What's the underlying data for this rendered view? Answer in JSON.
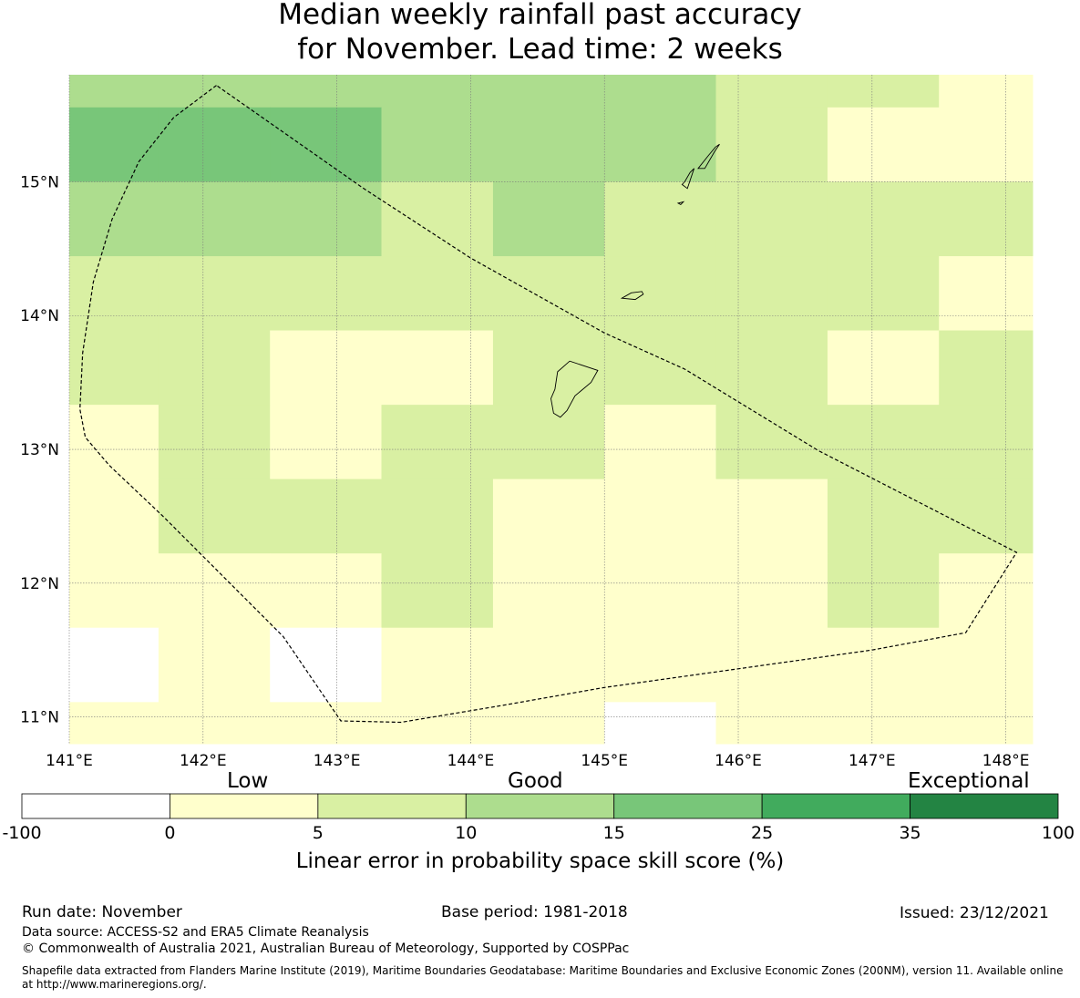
{
  "title": {
    "line1": "Median weekly rainfall past accuracy",
    "line2": "for November. Lead time: 2 weeks"
  },
  "map": {
    "lon_range": [
      141.0,
      148.2
    ],
    "lat_range": [
      10.8,
      15.8
    ],
    "lon_ticks": [
      141,
      142,
      143,
      144,
      145,
      146,
      147,
      148
    ],
    "lon_labels": [
      "141°E",
      "142°E",
      "143°E",
      "144°E",
      "145°E",
      "146°E",
      "147°E",
      "148°E"
    ],
    "lat_ticks": [
      11,
      12,
      13,
      14,
      15
    ],
    "lat_labels": [
      "11°N",
      "12°N",
      "13°N",
      "14°N",
      "15°N"
    ],
    "cell_lon_edges": [
      141.0,
      141.667,
      142.5,
      143.333,
      144.167,
      145.0,
      145.833,
      146.667,
      147.5,
      148.2
    ],
    "cell_lat_edges": [
      15.8,
      15.556,
      15.0,
      14.444,
      13.889,
      13.333,
      12.778,
      12.222,
      11.667,
      11.111,
      10.8
    ],
    "grid_class": [
      [
        3,
        3,
        3,
        3,
        3,
        3,
        2,
        2,
        1
      ],
      [
        4,
        4,
        4,
        3,
        3,
        3,
        2,
        1,
        1
      ],
      [
        3,
        3,
        3,
        2,
        3,
        2,
        2,
        2,
        2
      ],
      [
        2,
        2,
        2,
        2,
        2,
        2,
        2,
        2,
        1
      ],
      [
        2,
        2,
        1,
        1,
        2,
        2,
        2,
        1,
        2
      ],
      [
        1,
        2,
        1,
        2,
        2,
        1,
        2,
        2,
        2
      ],
      [
        1,
        2,
        2,
        2,
        1,
        1,
        1,
        2,
        2
      ],
      [
        1,
        1,
        1,
        2,
        1,
        1,
        1,
        2,
        1
      ],
      [
        0,
        1,
        0,
        1,
        1,
        1,
        1,
        1,
        1
      ],
      [
        1,
        1,
        1,
        1,
        1,
        0,
        1,
        1,
        1
      ]
    ],
    "eez_boundary_lonlat": [
      [
        142.1,
        15.72
      ],
      [
        141.78,
        15.48
      ],
      [
        141.52,
        15.15
      ],
      [
        141.32,
        14.72
      ],
      [
        141.18,
        14.25
      ],
      [
        141.1,
        13.72
      ],
      [
        141.08,
        13.3
      ],
      [
        141.12,
        13.09
      ],
      [
        141.3,
        12.88
      ],
      [
        141.7,
        12.5
      ],
      [
        142.6,
        11.6
      ],
      [
        143.03,
        10.97
      ],
      [
        143.48,
        10.96
      ],
      [
        144.2,
        11.08
      ],
      [
        145.0,
        11.22
      ],
      [
        146.0,
        11.36
      ],
      [
        147.0,
        11.5
      ],
      [
        147.7,
        11.63
      ],
      [
        148.08,
        12.23
      ],
      [
        146.6,
        12.99
      ],
      [
        145.6,
        13.6
      ],
      [
        145.0,
        13.87
      ],
      [
        144.0,
        14.43
      ],
      [
        143.2,
        14.95
      ],
      [
        142.1,
        15.72
      ]
    ],
    "islands_lonlat": [
      [
        [
          144.65,
          13.58
        ],
        [
          144.74,
          13.66
        ],
        [
          144.95,
          13.59
        ],
        [
          144.9,
          13.5
        ],
        [
          144.78,
          13.4
        ],
        [
          144.72,
          13.29
        ],
        [
          144.67,
          13.24
        ],
        [
          144.62,
          13.27
        ],
        [
          144.6,
          13.38
        ],
        [
          144.63,
          13.45
        ],
        [
          144.65,
          13.58
        ]
      ],
      [
        [
          145.13,
          14.13
        ],
        [
          145.2,
          14.17
        ],
        [
          145.28,
          14.18
        ],
        [
          145.29,
          14.16
        ],
        [
          145.23,
          14.12
        ],
        [
          145.13,
          14.13
        ]
      ],
      [
        [
          145.6,
          15.0
        ],
        [
          145.64,
          15.07
        ],
        [
          145.67,
          15.1
        ],
        [
          145.62,
          14.95
        ],
        [
          145.58,
          14.98
        ],
        [
          145.6,
          15.0
        ]
      ],
      [
        [
          145.7,
          15.1
        ],
        [
          145.78,
          15.2
        ],
        [
          145.83,
          15.26
        ],
        [
          145.86,
          15.28
        ],
        [
          145.82,
          15.22
        ],
        [
          145.75,
          15.1
        ],
        [
          145.7,
          15.1
        ]
      ],
      [
        [
          145.55,
          14.84
        ],
        [
          145.59,
          14.85
        ],
        [
          145.57,
          14.83
        ],
        [
          145.55,
          14.84
        ]
      ]
    ]
  },
  "colorbar": {
    "bounds": [
      "-100",
      "0",
      "5",
      "10",
      "15",
      "25",
      "35",
      "100"
    ],
    "colors": [
      "#ffffff",
      "#ffffcc",
      "#d9f0a3",
      "#addd8e",
      "#78c679",
      "#41ab5d",
      "#238443"
    ],
    "categories": {
      "low": "Low",
      "good": "Good",
      "exceptional": "Exceptional"
    },
    "label": "Linear error in probability space skill score (%)"
  },
  "footer": {
    "run_date": "Run date: November",
    "base_period": "Base period: 1981-2018",
    "issued": "Issued: 23/12/2021",
    "data_source": "Data source: ACCESS-S2 and ERA5 Climate Reanalysis",
    "copyright": "© Commonwealth of Australia 2021, Australian Bureau of Meteorology, Supported by COSPPac",
    "shapefile": "Shapefile data extracted from Flanders Marine Institute (2019), Maritime Boundaries Geodatabase: Maritime Boundaries and Exclusive Economic Zones (200NM), version 11. Available online at http://www.marineregions.org/."
  }
}
